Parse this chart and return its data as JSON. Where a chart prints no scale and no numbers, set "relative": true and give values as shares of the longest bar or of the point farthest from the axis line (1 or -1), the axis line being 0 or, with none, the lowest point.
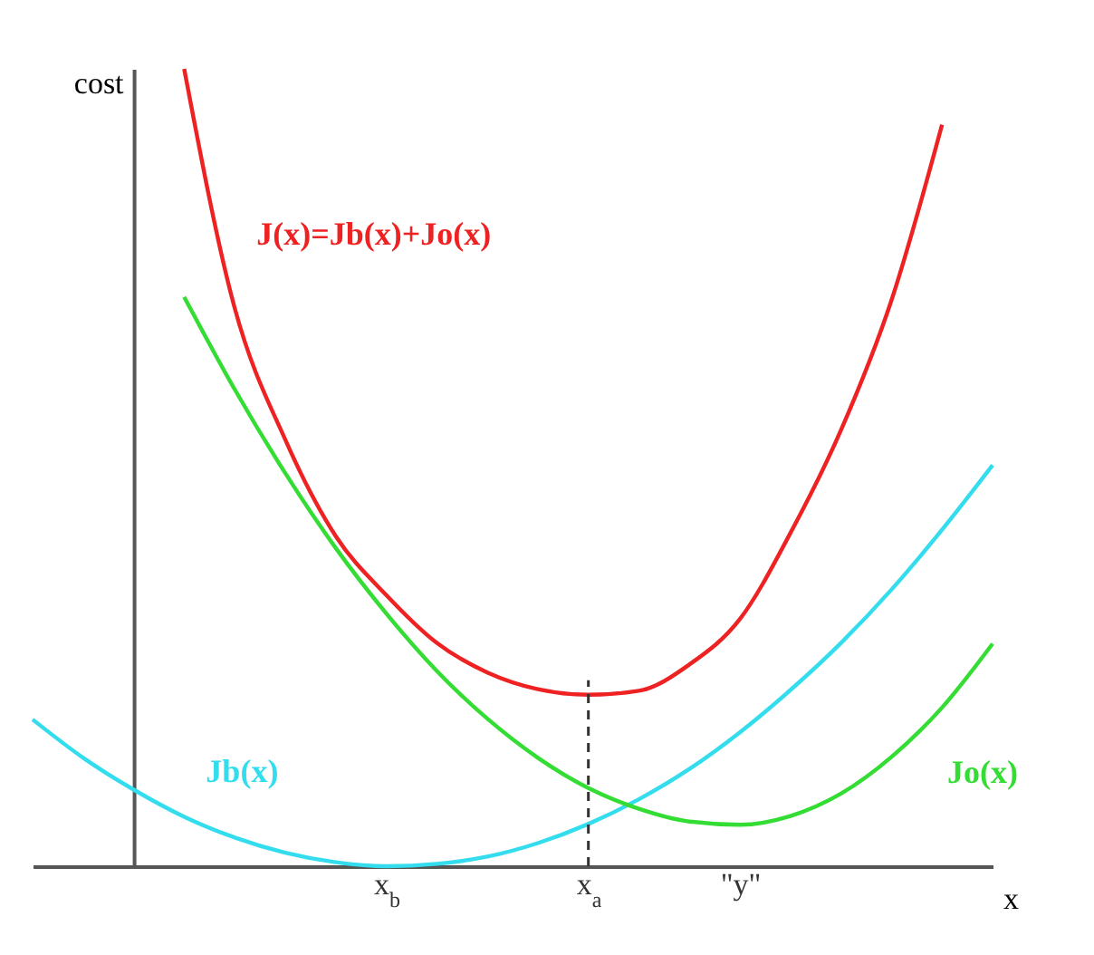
{
  "chart_data": {
    "type": "line",
    "relative": true,
    "xlabel": "x",
    "ylabel": "cost",
    "categories": [
      null,
      null,
      null,
      null,
      null,
      null,
      null,
      "x$_{b}$",
      null,
      null,
      null,
      "x$_{a}$",
      null,
      null,
      "\"y\"",
      null,
      null,
      null,
      null,
      null
    ],
    "series": [
      {
        "name": "J(x)=Jb(x)+Jo(x)",
        "color": "#ee2222",
        "values": [
          null,
          null,
          null,
          1.0,
          0.7,
          0.535,
          0.414,
          0.34,
          0.28,
          0.243,
          0.222,
          0.215,
          0.22,
          0.253,
          0.31,
          0.418,
          0.547,
          0.71,
          0.93,
          null
        ]
      },
      {
        "name": "Jb(x)",
        "color": "#33ddee",
        "values": [
          0.184,
          0.136,
          0.096,
          0.062,
          0.036,
          0.017,
          0.005,
          0,
          0.003,
          0.012,
          0.029,
          0.053,
          0.084,
          0.122,
          0.168,
          0.221,
          0.28,
          0.347,
          0.422,
          0.503
        ]
      },
      {
        "name": "Jo(x)",
        "color": "#33dd33",
        "values": [
          null,
          null,
          null,
          0.714,
          0.598,
          0.493,
          0.399,
          0.317,
          0.245,
          0.185,
          0.136,
          0.098,
          0.072,
          0.056,
          0.052,
          0.063,
          0.091,
          0.137,
          0.199,
          0.279
        ]
      }
    ],
    "ref_lines": [
      {
        "axis": "x",
        "value": "x$_{a}$",
        "color": "#333333",
        "line_style": "dashed"
      }
    ]
  }
}
